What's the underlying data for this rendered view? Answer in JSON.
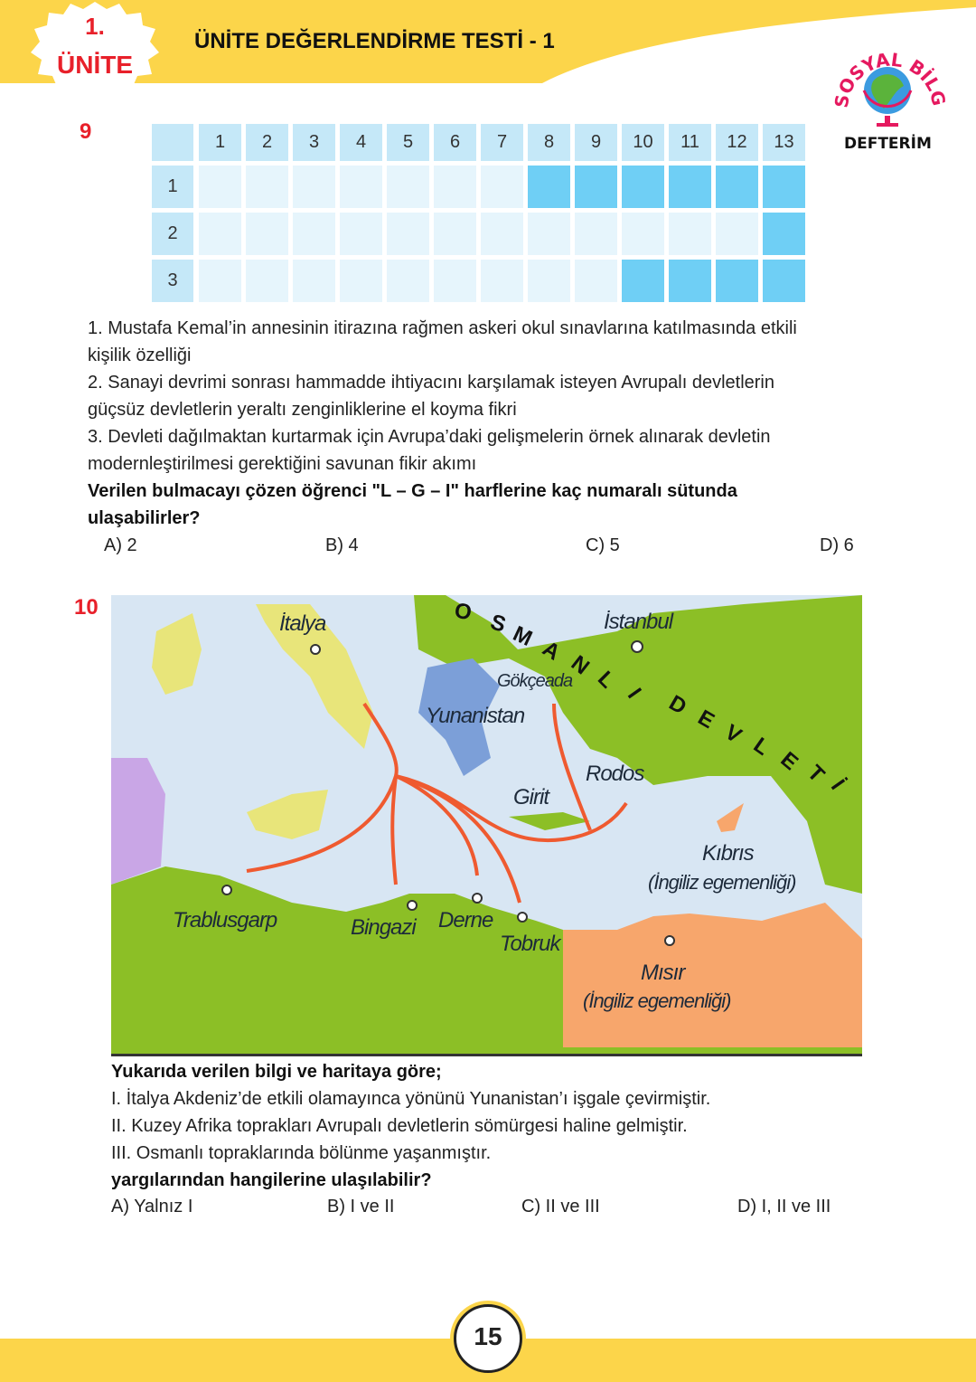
{
  "header": {
    "unit_number": "1.",
    "unit_word": "ÜNİTE",
    "title": "ÜNİTE DEĞERLENDİRME TESTİ - 1",
    "logo_text": "SOSYAL BİLGİLER DEFTERİM",
    "accent": "#e8202a",
    "band_color": "#fcd54a"
  },
  "q9": {
    "number": "9",
    "grid": {
      "columns": [
        "1",
        "2",
        "3",
        "4",
        "5",
        "6",
        "7",
        "8",
        "9",
        "10",
        "11",
        "12",
        "13"
      ],
      "rows": [
        "1",
        "2",
        "3"
      ],
      "filled": [
        [
          8,
          9,
          10,
          11,
          12,
          13
        ],
        [
          13
        ],
        [
          10,
          11,
          12,
          13
        ]
      ],
      "fill_color": "#6fcff5",
      "empty_color": "#e6f5fc"
    },
    "lines": [
      "1. Mustafa Kemal’in annesinin itirazına rağmen askeri okul sınavlarına katılmasında etkili",
      "kişilik özelliği",
      "2. Sanayi devrimi sonrası hammadde ihtiyacını karşılamak isteyen Avrupalı devletlerin",
      "güçsüz devletlerin yeraltı zenginliklerine el koyma fikri",
      "3. Devleti dağılmaktan kurtarmak için Avrupa’daki gelişmelerin örnek alınarak devletin",
      "modernleştirilmesi gerektiğini savunan fikir akımı"
    ],
    "question": [
      "Verilen bulmacayı çözen öğrenci \"L – G – I\" harflerine kaç numaralı sütunda",
      "ulaşabilirler?"
    ],
    "options": [
      "A) 2",
      "B) 4",
      "C) 5",
      "D) 6"
    ]
  },
  "q10": {
    "number": "10",
    "map": {
      "labels": {
        "italya": "İtalya",
        "istanbul": "İstanbul",
        "gokceada": "Gökçeada",
        "yunanistan": "Yunanistan",
        "rodos": "Rodos",
        "girit": "Girit",
        "kibris": "Kıbrıs",
        "kibris_note": "(İngiliz egemenliği)",
        "trablusgarp": "Trablusgarp",
        "bingazi": "Bingazi",
        "derne": "Derne",
        "tobruk": "Tobruk",
        "misir": "Mısır",
        "misir_note": "(İngiliz egemenliği)",
        "osmanli": [
          "O",
          "S",
          "M",
          "A",
          "N",
          "L",
          "I"
        ],
        "devleti": [
          "D",
          "E",
          "V",
          "L",
          "E",
          "T",
          "İ"
        ]
      },
      "colors": {
        "sea": "#d8e6f3",
        "ottoman": "#8cbf26",
        "italy": "#e8e57a",
        "greece": "#7c9fd8",
        "british": "#f7a66c",
        "france": "#c9a6e6",
        "arrow": "#ef5a30"
      }
    },
    "lead": "Yukarıda verilen bilgi ve haritaya göre;",
    "statements": [
      "I. İtalya Akdeniz’de etkili olamayınca yönünü Yunanistan’ı işgale çevirmiştir.",
      "II. Kuzey Afrika toprakları Avrupalı devletlerin sömürgesi haline gelmiştir.",
      "III. Osmanlı topraklarında bölünme yaşanmıştır."
    ],
    "question": "yargılarından hangilerine ulaşılabilir?",
    "options": [
      "A) Yalnız I",
      "B) I ve II",
      "C) II ve III",
      "D) I, II ve III"
    ]
  },
  "footer": {
    "page_number": "15"
  }
}
